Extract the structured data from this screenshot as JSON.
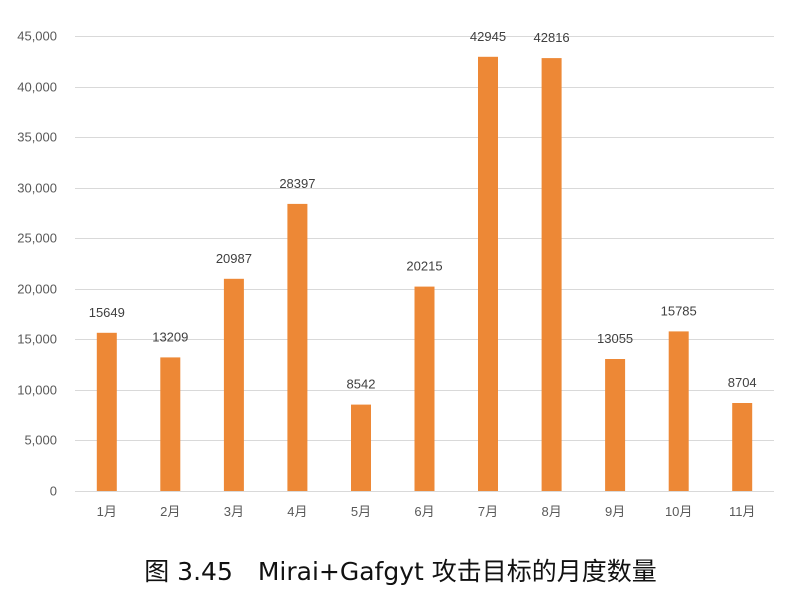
{
  "caption": "图 3.45　Mirai+Gafgyt 攻击目标的月度数量",
  "chart_data": {
    "type": "bar",
    "categories": [
      "1月",
      "2月",
      "3月",
      "4月",
      "5月",
      "6月",
      "7月",
      "8月",
      "9月",
      "10月",
      "11月"
    ],
    "values": [
      15649,
      13209,
      20987,
      28397,
      8542,
      20215,
      42945,
      42816,
      13055,
      15785,
      8704
    ],
    "ylim": [
      0,
      45000
    ],
    "yticks": [
      0,
      5000,
      10000,
      15000,
      20000,
      25000,
      30000,
      35000,
      40000,
      45000
    ],
    "ytick_labels": [
      "0",
      "5,000",
      "10,000",
      "15,000",
      "20,000",
      "25,000",
      "30,000",
      "35,000",
      "40,000",
      "45,000"
    ],
    "title": "",
    "xlabel": "",
    "ylabel": "",
    "grid": true,
    "bar_color": "#ED8836",
    "grid_color": "#D9D9D9",
    "data_labels": true
  }
}
